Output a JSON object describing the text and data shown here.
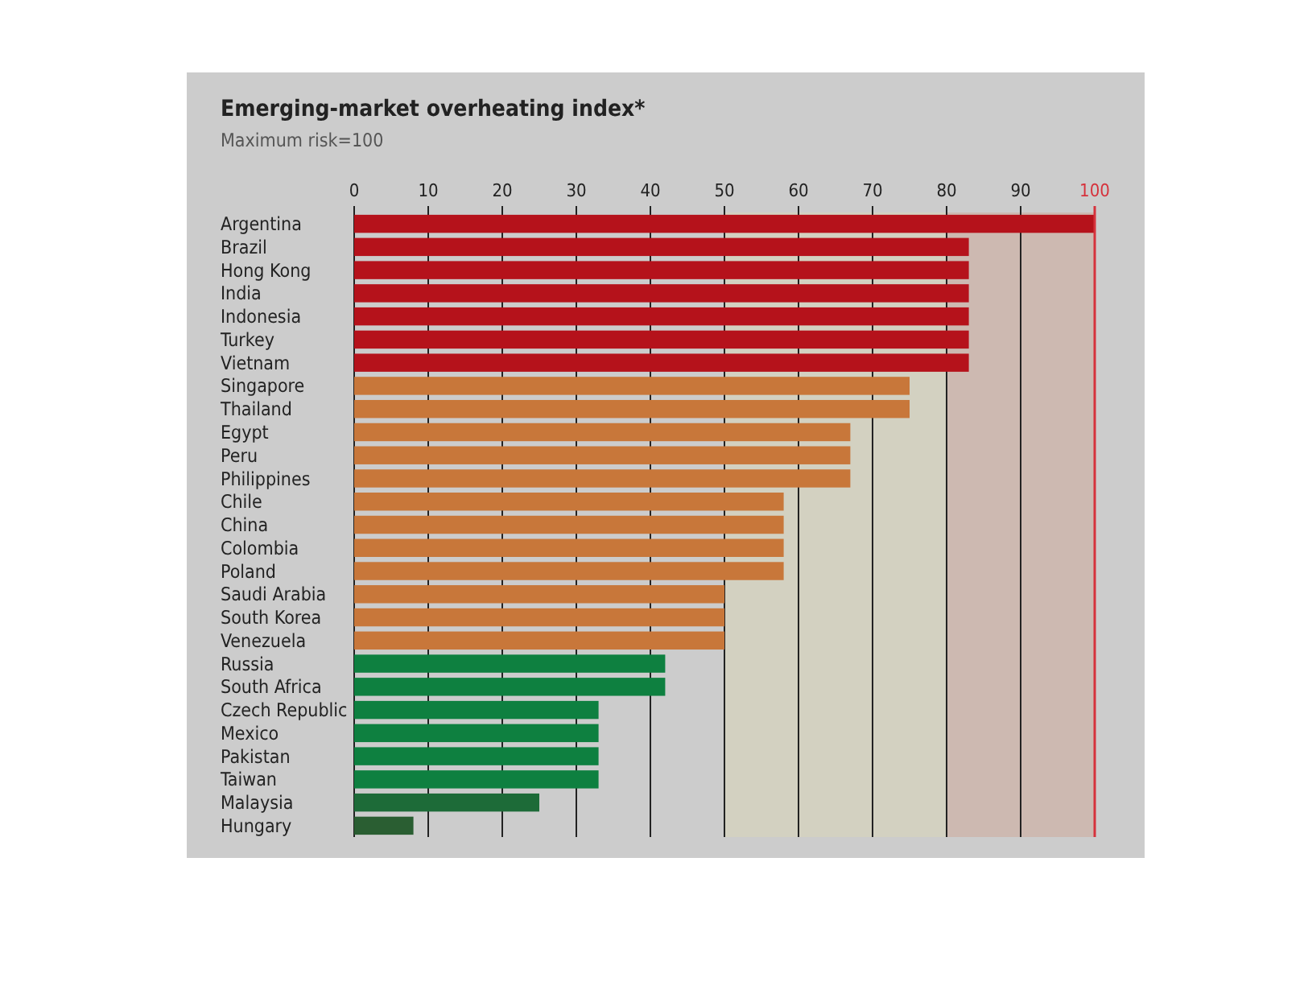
{
  "chart_data": {
    "type": "bar",
    "orientation": "horizontal",
    "title": "Emerging-market overheating index*",
    "subtitle": "Maximum risk=100",
    "categories": [
      "Argentina",
      "Brazil",
      "Hong Kong",
      "India",
      "Indonesia",
      "Turkey",
      "Vietnam",
      "Singapore",
      "Thailand",
      "Egypt",
      "Peru",
      "Philippines",
      "Chile",
      "China",
      "Colombia",
      "Poland",
      "Saudi Arabia",
      "South Korea",
      "Venezuela",
      "Russia",
      "South Africa",
      "Czech Republic",
      "Mexico",
      "Pakistan",
      "Taiwan",
      "Malaysia",
      "Hungary"
    ],
    "values": [
      100,
      83,
      83,
      83,
      83,
      83,
      83,
      75,
      75,
      67,
      67,
      67,
      58,
      58,
      58,
      58,
      50,
      50,
      50,
      42,
      42,
      33,
      33,
      33,
      33,
      25,
      8
    ],
    "colors": [
      "#b5121b",
      "#b5121b",
      "#b5121b",
      "#b5121b",
      "#b5121b",
      "#b5121b",
      "#b5121b",
      "#c8773a",
      "#c8773a",
      "#c8773a",
      "#c8773a",
      "#c8773a",
      "#c8773a",
      "#c8773a",
      "#c8773a",
      "#c8773a",
      "#c8773a",
      "#c8773a",
      "#c8773a",
      "#0e8040",
      "#0e8040",
      "#0e8040",
      "#0e8040",
      "#0e8040",
      "#0e8040",
      "#1d6b38",
      "#2a5e32"
    ],
    "xlim": [
      0,
      100
    ],
    "xticks": [
      0,
      10,
      20,
      30,
      40,
      50,
      60,
      70,
      80,
      90,
      100
    ],
    "grid": "x",
    "bands": [
      {
        "axis": "x",
        "from": 50,
        "to": 80,
        "color": "#d3d1c1"
      },
      {
        "axis": "x",
        "from": 80,
        "to": 100,
        "color": "#cdb9b1"
      }
    ],
    "ref_lines": [
      {
        "axis": "x",
        "value": 100,
        "color": "#d6323c"
      }
    ]
  }
}
